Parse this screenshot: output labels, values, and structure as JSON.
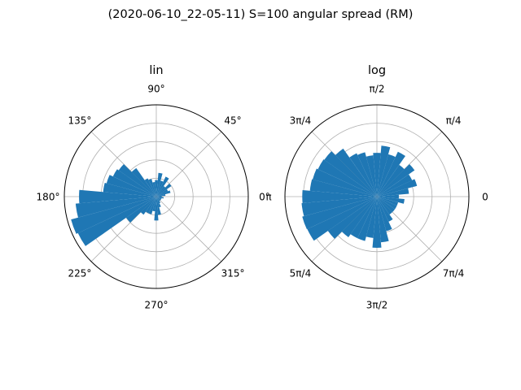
{
  "figure": {
    "suptitle": "(2020-06-10_22-05-11) S=100 angular spread (RM)"
  },
  "chart_data": [
    {
      "type": "bar",
      "projection": "polar",
      "title": "lin",
      "theta_tick_labels": [
        "0°",
        "45°",
        "90°",
        "135°",
        "180°",
        "225°",
        "270°",
        "315°"
      ],
      "theta_ticks_deg": [
        0,
        45,
        90,
        135,
        180,
        225,
        270,
        315
      ],
      "radial_scale": "linear",
      "rlim": [
        0,
        5
      ],
      "rgrid": [
        1,
        2,
        3,
        4
      ],
      "grid": true,
      "bin_width_deg": 10,
      "theta_centers_deg": [
        0,
        10,
        20,
        30,
        40,
        50,
        60,
        70,
        80,
        90,
        100,
        110,
        120,
        130,
        140,
        150,
        160,
        170,
        180,
        190,
        200,
        210,
        220,
        230,
        240,
        250,
        260,
        270,
        280,
        290,
        300,
        310,
        320,
        330,
        340,
        350
      ],
      "values": [
        0.3,
        0.5,
        0.8,
        0.7,
        1.0,
        0.7,
        1.2,
        0.9,
        1.3,
        0.9,
        0.8,
        1.0,
        1.1,
        1.9,
        2.5,
        2.6,
        2.8,
        2.9,
        4.2,
        4.4,
        4.8,
        4.7,
        2.0,
        1.2,
        1.0,
        1.0,
        0.8,
        1.3,
        1.0,
        0.6,
        0.4,
        0.3,
        0.3,
        0.3,
        0.3,
        0.4
      ],
      "color": "#1f77b4"
    },
    {
      "type": "bar",
      "projection": "polar",
      "title": "log",
      "theta_tick_labels": [
        "0",
        "π/4",
        "π/2",
        "3π/4",
        "π",
        "5π/4",
        "3π/2",
        "7π/4"
      ],
      "theta_ticks_deg": [
        0,
        45,
        90,
        135,
        180,
        225,
        270,
        315
      ],
      "radial_scale": "log",
      "rlim": [
        0.1,
        10
      ],
      "grid": true,
      "bin_width_deg": 10,
      "theta_centers_deg": [
        0,
        10,
        20,
        30,
        40,
        50,
        60,
        70,
        80,
        90,
        100,
        110,
        120,
        130,
        140,
        150,
        160,
        170,
        180,
        190,
        200,
        210,
        220,
        230,
        240,
        250,
        260,
        270,
        280,
        290,
        300,
        310,
        320,
        330,
        340,
        350
      ],
      "values": [
        0.3,
        0.5,
        0.8,
        0.7,
        1.0,
        0.7,
        1.2,
        0.9,
        1.3,
        0.9,
        0.8,
        1.0,
        1.1,
        1.9,
        2.5,
        2.6,
        2.8,
        2.9,
        4.2,
        4.4,
        4.8,
        4.7,
        2.0,
        1.2,
        1.0,
        1.0,
        0.8,
        1.3,
        1.0,
        0.6,
        0.4,
        0.3,
        0.3,
        0.3,
        0.3,
        0.4
      ],
      "color": "#1f77b4"
    }
  ]
}
